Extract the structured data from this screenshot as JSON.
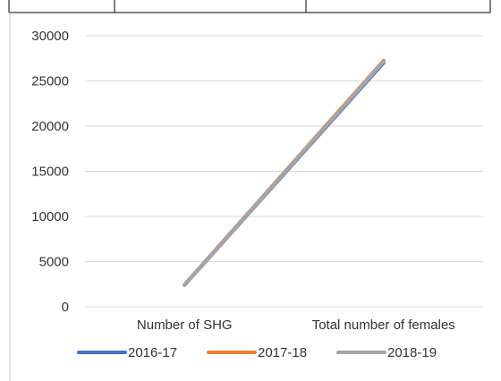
{
  "chart_data": {
    "type": "line",
    "title": "",
    "xlabel": "",
    "ylabel": "",
    "categories": [
      "Number of SHG",
      "Total number of females"
    ],
    "series": [
      {
        "name": "2016-17",
        "values": [
          2400,
          27000
        ],
        "color": "#4472C4"
      },
      {
        "name": "2017-18",
        "values": [
          2450,
          27250
        ],
        "color": "#ED7D31"
      },
      {
        "name": "2018-19",
        "values": [
          2420,
          27150
        ],
        "color": "#A5A5A5"
      }
    ],
    "ylim": [
      0,
      30000
    ],
    "yticks": [
      "0",
      "5000",
      "10000",
      "15000",
      "20000",
      "25000",
      "30000"
    ],
    "grid": true,
    "legend": "bottom"
  },
  "colors": {
    "gridline": "#D9D9D9",
    "axis": "#D9D9D9",
    "table_border": "#000000"
  }
}
